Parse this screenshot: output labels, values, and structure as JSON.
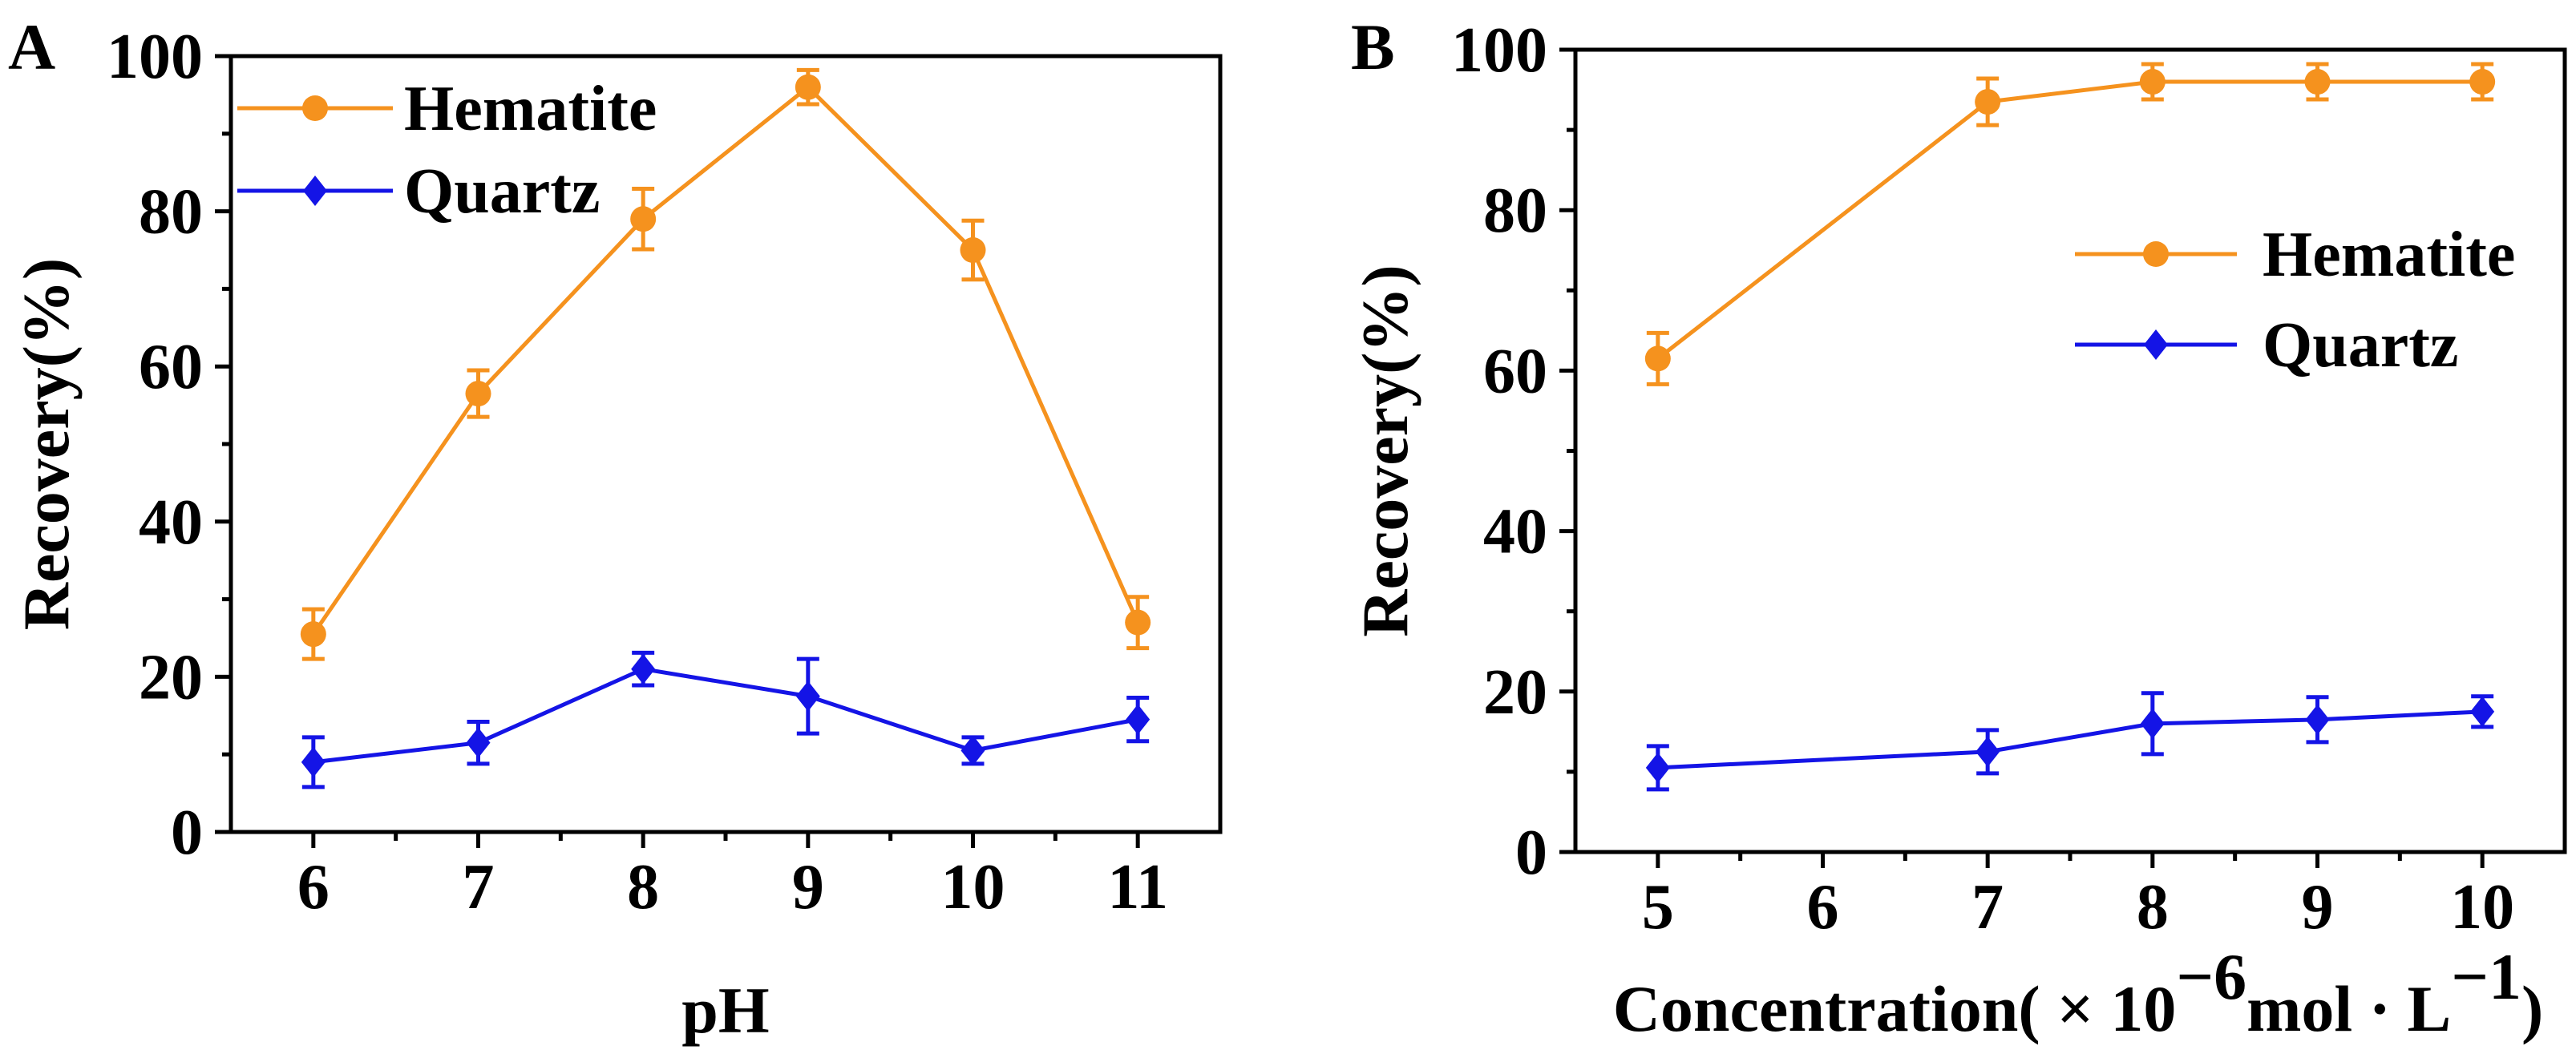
{
  "chart_data": [
    {
      "panel_label": "A",
      "type": "line",
      "xlabel": "pH",
      "ylabel": "Recovery(%)",
      "xlim": [
        5.5,
        11.5
      ],
      "ylim": [
        0,
        100
      ],
      "xticks": [
        6,
        7,
        8,
        9,
        10,
        11
      ],
      "yticks": [
        0,
        20,
        40,
        60,
        80,
        100
      ],
      "legend_position": "top-left",
      "series": [
        {
          "name": "Hematite",
          "color": "#F5921E",
          "marker": "circle",
          "x": [
            6,
            7,
            8,
            9,
            10,
            11
          ],
          "y": [
            25.5,
            56.5,
            79,
            96,
            75,
            27
          ],
          "error": [
            3.2,
            3,
            3.9,
            2.2,
            3.8,
            3.3
          ]
        },
        {
          "name": "Quartz",
          "color": "#1414E6",
          "marker": "diamond",
          "x": [
            6,
            7,
            8,
            9,
            10,
            11
          ],
          "y": [
            9,
            11.5,
            21,
            17.5,
            10.5,
            14.5
          ],
          "error": [
            3.2,
            2.7,
            2.1,
            4.8,
            1.7,
            2.8
          ]
        }
      ]
    },
    {
      "panel_label": "B",
      "type": "line",
      "xlabel": "Concentration( × 10",
      "xlabel_sup1": "−6",
      "xlabel_mid": "mol · L",
      "xlabel_sup2": "−1",
      "xlabel_end": ")",
      "ylabel": "Recovery(%)",
      "xlim": [
        4.5,
        10.5
      ],
      "ylim": [
        0,
        100
      ],
      "xticks": [
        5,
        6,
        7,
        8,
        9,
        10
      ],
      "yticks": [
        0,
        20,
        40,
        60,
        80,
        100
      ],
      "legend_position": "upper-right",
      "series": [
        {
          "name": "Hematite",
          "color": "#F5921E",
          "marker": "circle",
          "x": [
            5,
            7,
            8,
            9,
            10
          ],
          "y": [
            61.5,
            93.5,
            96,
            96,
            96
          ],
          "error": [
            3.2,
            2.9,
            2.2,
            2.2,
            2.2
          ]
        },
        {
          "name": "Quartz",
          "color": "#1414E6",
          "marker": "diamond",
          "x": [
            5,
            7,
            8,
            9,
            10
          ],
          "y": [
            10.5,
            12.5,
            16,
            16.5,
            17.5
          ],
          "error": [
            2.7,
            2.7,
            3.8,
            2.8,
            1.9
          ]
        }
      ]
    }
  ]
}
